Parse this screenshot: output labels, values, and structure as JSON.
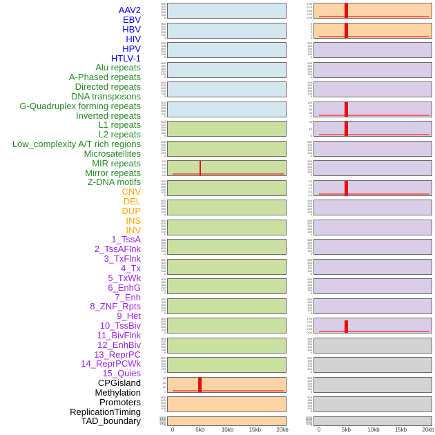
{
  "figure": {
    "x_axis_ticks": [
      "0",
      "5kb",
      "10kb",
      "15kb",
      "20kb"
    ],
    "default_yticks": [
      "0",
      "100",
      "200",
      "300",
      "400",
      "500"
    ],
    "label_colors": {
      "virus": "#0000ee",
      "repeat": "#228b22",
      "sv": "#ffa500",
      "chromatin": "#a020f0",
      "other": "#000000"
    },
    "panel_colors": {
      "virus": "#d2e6ee",
      "repeat": "#cadfa0",
      "sv": "#fcd3a4",
      "chromatin": "#d8cee7",
      "other": "#d3d3d3"
    },
    "signal_color": "#ec0c0c",
    "layout_note": "44 rows listed at left; plots split into two columns of 22 panels (left column = rows 1-22, right column = rows 23-44)"
  },
  "chart_data": {
    "type": "line",
    "x_range_kb": [
      0,
      20
    ],
    "x_tick_labels": [
      "0",
      "5kb",
      "10kb",
      "15kb",
      "20kb"
    ],
    "legend_position": "none",
    "grid": false,
    "series_note": "Each panel shows a red feature-density line that is flat near 0 across 0-20kb; panels with spike_at_kb have a sharp narrow peak at ~5kb reaching spike_value.",
    "panels": [
      {
        "label": "AAV2",
        "group": "virus"
      },
      {
        "label": "EBV",
        "group": "virus"
      },
      {
        "label": "HBV",
        "group": "virus"
      },
      {
        "label": "HIV",
        "group": "virus"
      },
      {
        "label": "HPV",
        "group": "virus"
      },
      {
        "label": "HTLV-1",
        "group": "virus"
      },
      {
        "label": "Alu repeats",
        "group": "repeat"
      },
      {
        "label": "A-Phased repeats",
        "group": "repeat"
      },
      {
        "label": "Directed repeats",
        "group": "repeat",
        "yticks": [
          "0.0",
          "0.5",
          "1.0",
          "1.5",
          "2.0"
        ],
        "spike_at_kb": 5,
        "spike_value": 2.0,
        "spike_frac": 1,
        "spike_w": 2
      },
      {
        "label": "DNA transposons",
        "group": "repeat"
      },
      {
        "label": "G-Quadruplex forming repeats",
        "group": "repeat"
      },
      {
        "label": "Inverted repeats",
        "group": "repeat"
      },
      {
        "label": "L1 repeats",
        "group": "repeat"
      },
      {
        "label": "L2 repeats",
        "group": "repeat"
      },
      {
        "label": "Low_complexity A/T rich regions",
        "group": "repeat"
      },
      {
        "label": "Microsatellites",
        "group": "repeat"
      },
      {
        "label": "MIR repeats",
        "group": "repeat"
      },
      {
        "label": "Mirror repeats",
        "group": "repeat"
      },
      {
        "label": "Z-DNA motifs",
        "group": "repeat"
      },
      {
        "label": "CNV",
        "group": "sv",
        "yticks": [
          "0",
          "10",
          "20",
          "30"
        ],
        "spike_at_kb": 5,
        "spike_value": 35,
        "spike_frac": 1,
        "spike_w": 5
      },
      {
        "label": "DEL",
        "group": "sv"
      },
      {
        "label": "DUP",
        "group": "sv",
        "yticks": [
          "0",
          "1000",
          "2000",
          "3000",
          "4000",
          "5000"
        ]
      },
      {
        "label": "INS",
        "group": "sv",
        "yticks": [
          "0.00",
          "0.25",
          "0.50",
          "0.75",
          "1.00"
        ],
        "spike_at_kb": 5,
        "spike_value": 1.0,
        "spike_frac": 1,
        "spike_w": 5
      },
      {
        "label": "INV",
        "group": "sv",
        "yticks": [
          "0",
          "1",
          "2",
          "3",
          "4",
          "5"
        ],
        "spike_at_kb": 5,
        "spike_value": 5,
        "spike_frac": 1,
        "spike_w": 5
      },
      {
        "label": "1_TssA",
        "group": "chromatin"
      },
      {
        "label": "2_TssAFlnk",
        "group": "chromatin"
      },
      {
        "label": "3_TxFlnk",
        "group": "chromatin"
      },
      {
        "label": "4_Tx",
        "group": "chromatin",
        "yticks": [
          "0",
          "25",
          "50",
          "75",
          "100"
        ],
        "spike_at_kb": 5,
        "spike_value": 100,
        "spike_frac": 1,
        "spike_w": 5
      },
      {
        "label": "5_TxWk",
        "group": "chromatin",
        "yticks": [
          "0",
          "10",
          "20"
        ],
        "spike_at_kb": 5,
        "spike_value": 25,
        "spike_frac": 1,
        "spike_w": 5
      },
      {
        "label": "6_EnhG",
        "group": "chromatin"
      },
      {
        "label": "7_Enh",
        "group": "chromatin"
      },
      {
        "label": "8_ZNF_Rpts",
        "group": "chromatin",
        "yticks": [
          "0.0",
          "0.5",
          "1.0",
          "1.5",
          "2.0"
        ],
        "spike_at_kb": 5,
        "spike_value": 2.0,
        "spike_frac": 1,
        "spike_w": 5
      },
      {
        "label": "9_Het",
        "group": "chromatin"
      },
      {
        "label": "10_TssBiv",
        "group": "chromatin"
      },
      {
        "label": "11_BivFlnk",
        "group": "chromatin"
      },
      {
        "label": "12_EnhBiv",
        "group": "chromatin"
      },
      {
        "label": "13_ReprPC",
        "group": "chromatin"
      },
      {
        "label": "14_ReprPCWk",
        "group": "chromatin"
      },
      {
        "label": "15_Quies",
        "group": "chromatin",
        "yticks": [
          "0.00",
          "0.25",
          "0.50",
          "0.75",
          "1.00"
        ],
        "spike_at_kb": 5,
        "spike_value": 0.9,
        "spike_frac": 0.85,
        "spike_w": 5
      },
      {
        "label": "CPGisland",
        "group": "other"
      },
      {
        "label": "Methylation",
        "group": "other"
      },
      {
        "label": "Promoters",
        "group": "other"
      },
      {
        "label": "ReplicationTiming",
        "group": "other"
      },
      {
        "label": "TAD_boundary",
        "group": "other",
        "yticks": [
          "0",
          "1000",
          "2000",
          "3000",
          "4000",
          "5000"
        ]
      }
    ]
  }
}
